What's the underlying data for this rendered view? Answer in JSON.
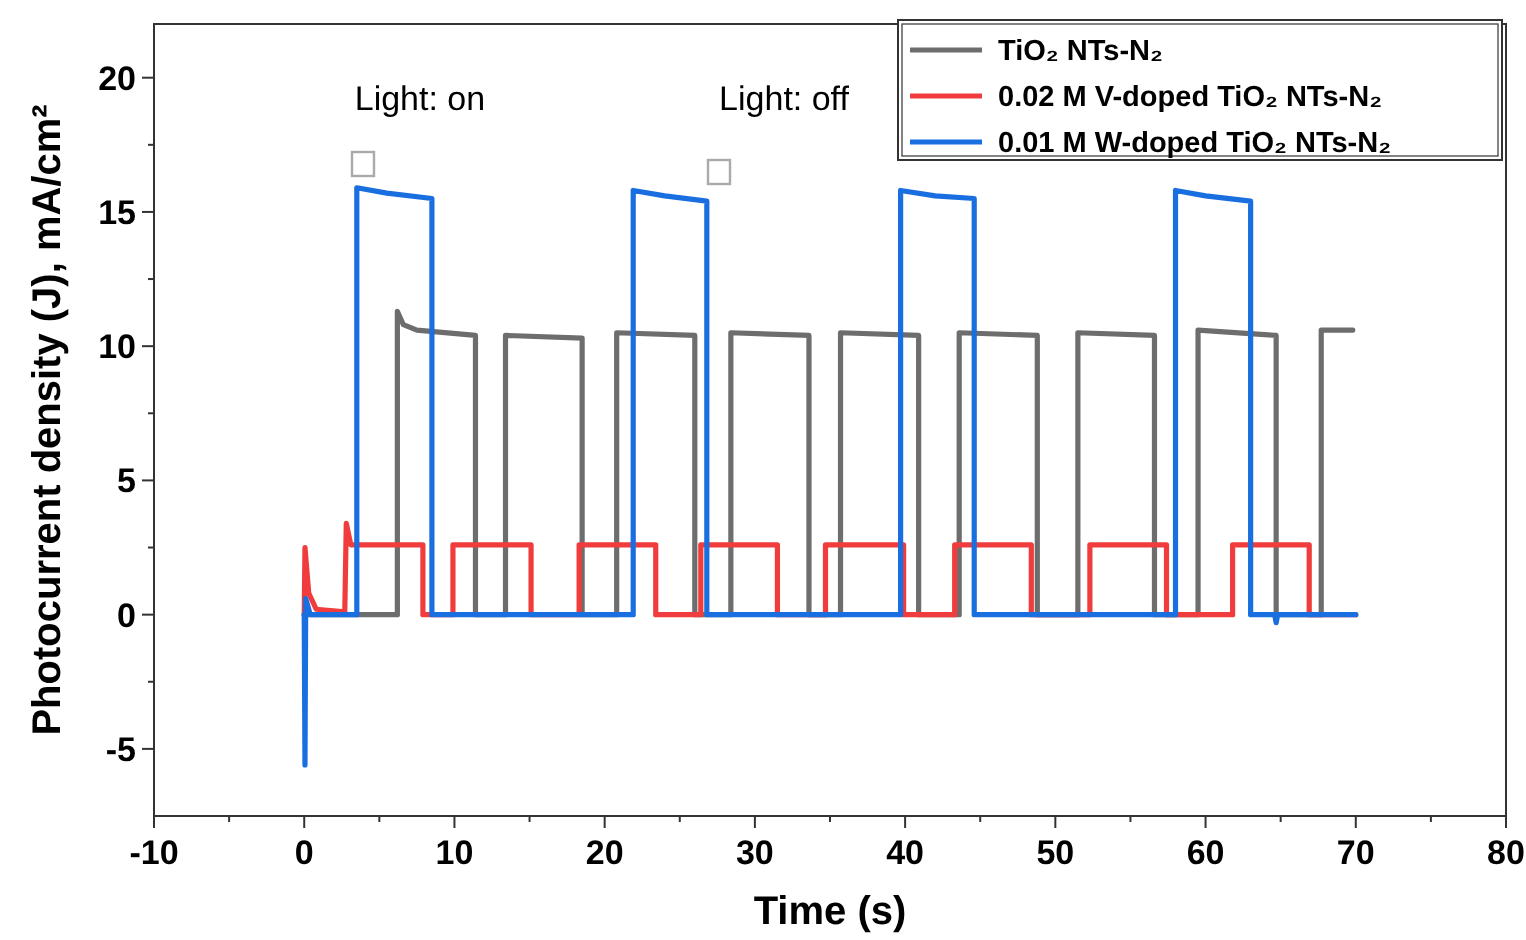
{
  "chart_data": {
    "type": "line",
    "xlabel": "Time (s)",
    "ylabel": "Photocurrent density (J),  mA/cm²",
    "annotations": [
      "Light: on",
      "Light: off"
    ],
    "xlim": [
      -10,
      80
    ],
    "ylim": [
      -7.5,
      22
    ],
    "xticks": [
      -10,
      {
        "value": -5,
        "label": null
      },
      0,
      {
        "value": 5,
        "label": null
      },
      10,
      {
        "value": 15,
        "label": null
      },
      20,
      {
        "value": 25,
        "label": null
      },
      30,
      {
        "value": 35,
        "label": null
      },
      40,
      {
        "value": 45,
        "label": null
      },
      50,
      {
        "value": 55,
        "label": null
      },
      60,
      {
        "value": 65,
        "label": null
      },
      70,
      {
        "value": 75,
        "label": null
      },
      80
    ],
    "yticks": [
      -5,
      {
        "value": -2.5,
        "label": null
      },
      0,
      {
        "value": 2.5,
        "label": null
      },
      5,
      {
        "value": 7.5,
        "label": null
      },
      10,
      {
        "value": 12.5,
        "label": null
      },
      15,
      {
        "value": 17.5,
        "label": null
      },
      20
    ],
    "legend": "top right",
    "grid": false,
    "marker": "none",
    "line_style": "solid",
    "series": [
      {
        "name": "TiO₂ NTs-N₂",
        "color": "#6d6d6d",
        "x": [
          0,
          6.2,
          6.2,
          6.6,
          7.5,
          11.4,
          11.4,
          13.4,
          13.4,
          18.5,
          18.5,
          20.8,
          20.8,
          26.0,
          26.0,
          28.4,
          28.4,
          33.6,
          33.6,
          35.7,
          35.7,
          40.9,
          40.9,
          43.6,
          43.6,
          48.8,
          48.8,
          51.5,
          51.5,
          56.6,
          56.6,
          59.5,
          59.5,
          64.7,
          64.7,
          67.7,
          67.7,
          69.8
        ],
        "values": [
          0,
          0,
          11.3,
          10.8,
          10.6,
          10.4,
          0,
          0,
          10.4,
          10.3,
          0,
          0,
          10.5,
          10.4,
          0,
          0,
          10.5,
          10.4,
          0,
          0,
          10.5,
          10.4,
          0,
          0,
          10.5,
          10.4,
          0,
          0,
          10.5,
          10.4,
          0,
          0,
          10.6,
          10.4,
          0,
          0,
          10.6,
          10.6
        ]
      },
      {
        "name": "0.02 M V-doped TiO₂ NTs-N₂",
        "color": "#f03c3c",
        "x": [
          0,
          0.05,
          0.3,
          0.8,
          2.7,
          2.8,
          3.1,
          7.9,
          7.9,
          9.9,
          9.9,
          15.1,
          15.1,
          18.3,
          18.3,
          23.4,
          23.4,
          26.4,
          26.4,
          31.5,
          31.5,
          34.7,
          34.7,
          39.9,
          39.9,
          43.3,
          43.3,
          48.4,
          48.4,
          52.3,
          52.3,
          57.4,
          57.4,
          61.8,
          61.8,
          66.9,
          66.9,
          70
        ],
        "values": [
          0,
          2.5,
          0.8,
          0.2,
          0.1,
          3.4,
          2.6,
          2.6,
          0,
          0,
          2.6,
          2.6,
          0,
          0,
          2.6,
          2.6,
          0,
          0,
          2.6,
          2.6,
          0,
          0,
          2.6,
          2.6,
          0,
          0,
          2.6,
          2.6,
          0,
          0,
          2.6,
          2.6,
          0,
          0,
          2.6,
          2.6,
          0,
          0
        ]
      },
      {
        "name": "0.01 M W-doped TiO₂ NTs-N₂",
        "color": "#1a6fe0",
        "x": [
          0,
          0.05,
          0.1,
          0.4,
          3.5,
          3.5,
          5.5,
          8.5,
          8.5,
          21.9,
          21.9,
          24,
          26.8,
          26.8,
          39.7,
          39.7,
          42,
          44.6,
          44.6,
          58.0,
          58.0,
          60,
          63.0,
          63.0,
          64.6,
          64.7,
          64.8,
          70
        ],
        "values": [
          0,
          -5.6,
          0.6,
          0,
          0,
          15.9,
          15.7,
          15.5,
          0,
          0,
          15.8,
          15.6,
          15.4,
          0,
          0,
          15.8,
          15.6,
          15.5,
          0,
          0,
          15.8,
          15.6,
          15.4,
          0,
          0,
          -0.3,
          0,
          0
        ]
      }
    ]
  }
}
